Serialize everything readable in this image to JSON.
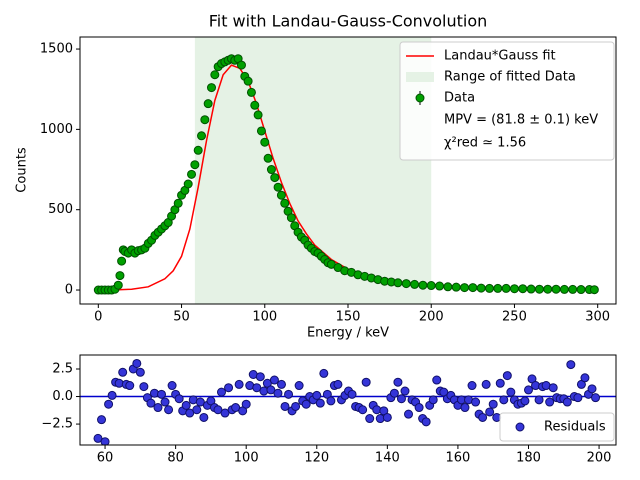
{
  "chart_data": [
    {
      "type": "line",
      "title": "Fit with Landau-Gauss-Convolution",
      "x_label": "Energy / keV",
      "y_label": "Counts",
      "xlim": [
        -11,
        311
      ],
      "xticks": [
        0,
        50,
        100,
        150,
        200,
        250,
        300
      ],
      "ylim": [
        -87,
        1575
      ],
      "yticks": [
        0,
        500,
        1000,
        1500
      ],
      "span": {
        "name": "Range of fitted Data",
        "range": [
          58,
          200
        ],
        "color": "#e5f2e5"
      },
      "legend": "upper right",
      "annotations": [
        "MPV = (81.8 ± 0.1) keV",
        "χ²red ≃ 1.56"
      ],
      "series": [
        {
          "name": "Landau*Gauss fit",
          "color": "#ff0000",
          "style": "line",
          "x": [
            0,
            10,
            20,
            30,
            40,
            45,
            50,
            55,
            60,
            65,
            70,
            75,
            80,
            85,
            90,
            95,
            100,
            105,
            110,
            115,
            120,
            125,
            130,
            140,
            150,
            160,
            170,
            180,
            190,
            200,
            220,
            240,
            260,
            280,
            300
          ],
          "values": [
            0,
            1,
            5,
            20,
            70,
            120,
            210,
            380,
            640,
            930,
            1180,
            1340,
            1400,
            1380,
            1300,
            1160,
            990,
            820,
            670,
            540,
            430,
            350,
            280,
            190,
            130,
            95,
            70,
            52,
            40,
            32,
            22,
            15,
            11,
            8,
            6
          ]
        },
        {
          "name": "Data",
          "color": "#00a000",
          "style": "markers",
          "x": [
            0,
            2,
            4,
            6,
            8,
            10,
            12,
            13,
            14,
            15,
            16,
            18,
            20,
            22,
            24,
            26,
            28,
            30,
            32,
            34,
            36,
            38,
            40,
            42,
            44,
            46,
            48,
            50,
            52,
            54,
            56,
            58,
            60,
            62,
            64,
            66,
            68,
            70,
            72,
            74,
            76,
            78,
            80,
            82,
            84,
            86,
            88,
            90,
            92,
            94,
            96,
            98,
            100,
            102,
            104,
            106,
            108,
            110,
            112,
            114,
            116,
            118,
            120,
            122,
            124,
            126,
            128,
            130,
            132,
            134,
            136,
            138,
            140,
            144,
            148,
            152,
            156,
            160,
            164,
            168,
            172,
            176,
            180,
            185,
            190,
            195,
            200,
            205,
            210,
            215,
            220,
            225,
            230,
            235,
            240,
            245,
            250,
            255,
            260,
            265,
            270,
            275,
            280,
            285,
            290,
            295,
            298
          ],
          "values": [
            0,
            0,
            0,
            0,
            0,
            5,
            30,
            90,
            180,
            250,
            240,
            230,
            250,
            230,
            245,
            250,
            260,
            290,
            310,
            340,
            360,
            380,
            400,
            420,
            460,
            500,
            540,
            590,
            620,
            660,
            720,
            780,
            870,
            960,
            1060,
            1160,
            1260,
            1340,
            1390,
            1410,
            1420,
            1430,
            1440,
            1430,
            1440,
            1400,
            1330,
            1300,
            1230,
            1150,
            1090,
            990,
            920,
            820,
            750,
            700,
            640,
            590,
            540,
            490,
            450,
            400,
            360,
            330,
            310,
            280,
            260,
            240,
            230,
            210,
            190,
            170,
            160,
            140,
            120,
            110,
            95,
            85,
            75,
            65,
            55,
            50,
            45,
            40,
            35,
            30,
            28,
            25,
            20,
            18,
            15,
            15,
            12,
            10,
            10,
            10,
            8,
            8,
            6,
            5,
            5,
            5,
            4,
            4,
            3,
            3,
            2
          ]
        }
      ]
    },
    {
      "type": "scatter",
      "xlim": [
        52.9,
        204.8
      ],
      "xticks": [
        60,
        80,
        100,
        120,
        140,
        160,
        180,
        200
      ],
      "ylim": [
        -4.4,
        3.77
      ],
      "yticks": [
        {
          "value": -2.5,
          "label": "−2.5"
        },
        {
          "value": 0,
          "label": "0.0"
        },
        2.5
      ],
      "hline": {
        "value": 0,
        "color": "#0000cc"
      },
      "legend": "lower right",
      "series": [
        {
          "name": "Residuals",
          "color": "#3535d8",
          "x": [
            58,
            59,
            60,
            61,
            62,
            63,
            64,
            65,
            66,
            67,
            68,
            69,
            70,
            71,
            72,
            73,
            74,
            75,
            76,
            77,
            78,
            79,
            80,
            81,
            82,
            83,
            84,
            85,
            86,
            87,
            88,
            89,
            90,
            91,
            92,
            93,
            94,
            95,
            96,
            97,
            98,
            99,
            100,
            101,
            102,
            103,
            104,
            105,
            106,
            107,
            108,
            109,
            110,
            111,
            112,
            113,
            114,
            115,
            116,
            117,
            118,
            119,
            120,
            121,
            122,
            123,
            124,
            125,
            126,
            127,
            128,
            129,
            130,
            131,
            132,
            133,
            134,
            135,
            136,
            137,
            138,
            139,
            140,
            141,
            142,
            143,
            144,
            145,
            146,
            147,
            148,
            149,
            150,
            151,
            152,
            153,
            154,
            155,
            156,
            157,
            158,
            159,
            160,
            161,
            162,
            163,
            164,
            165,
            166,
            167,
            168,
            169,
            170,
            171,
            172,
            173,
            174,
            175,
            176,
            177,
            178,
            179,
            180,
            181,
            182,
            183,
            184,
            185,
            186,
            187,
            188,
            189,
            190,
            191,
            192,
            193,
            194,
            195,
            196,
            197,
            198,
            199
          ],
          "values": [
            -3.8,
            -2.1,
            -4.1,
            -0.7,
            0.1,
            1.3,
            1.2,
            2.2,
            1.1,
            1.0,
            2.5,
            3.0,
            2.2,
            0.9,
            -0.1,
            -0.6,
            0.3,
            -1.0,
            0.2,
            -0.5,
            -1.2,
            1.0,
            0.2,
            -0.2,
            -1.3,
            -0.8,
            -1.5,
            -0.3,
            -1.2,
            -0.5,
            -1.9,
            -0.8,
            -0.4,
            -1.0,
            -1.2,
            0.4,
            -1.5,
            0.8,
            -1.2,
            -1.0,
            1.1,
            -1.3,
            -0.7,
            1.0,
            2.0,
            0.8,
            1.8,
            0.5,
            1.2,
            0.6,
            1.5,
            0.3,
            1.1,
            -0.9,
            0.2,
            -1.3,
            -0.9,
            1.0,
            -0.4,
            -0.7,
            0.0,
            -0.3,
            0.1,
            -0.6,
            2.1,
            0.2,
            -0.4,
            1.0,
            1.1,
            -0.3,
            0.1,
            0.5,
            0.2,
            -0.9,
            -1.0,
            -1.2,
            1.3,
            -2.0,
            -0.8,
            -1.2,
            -2.0,
            -1.3,
            -1.9,
            -0.1,
            0.3,
            1.3,
            -0.2,
            0.5,
            -1.6,
            -0.3,
            -0.5,
            -1.0,
            -2.0,
            -2.3,
            -0.8,
            -0.3,
            1.5,
            0.5,
            0.4,
            -0.2,
            0.1,
            -0.3,
            -0.8,
            -0.3,
            -1.0,
            -0.3,
            1.0,
            -0.5,
            -1.6,
            -1.9,
            1.1,
            -1.4,
            -0.7,
            -1.9,
            1.2,
            -0.3,
            1.9,
            0.4,
            -0.3,
            -0.7,
            -0.6,
            -0.4,
            0.6,
            1.6,
            1.0,
            -0.3,
            0.9,
            1.0,
            -0.5,
            0.8,
            -0.1,
            -0.2,
            -0.2,
            -0.5,
            2.9,
            0.0,
            -0.1,
            1.1,
            1.7,
            0.2,
            0.7,
            -0.1
          ]
        }
      ]
    }
  ]
}
